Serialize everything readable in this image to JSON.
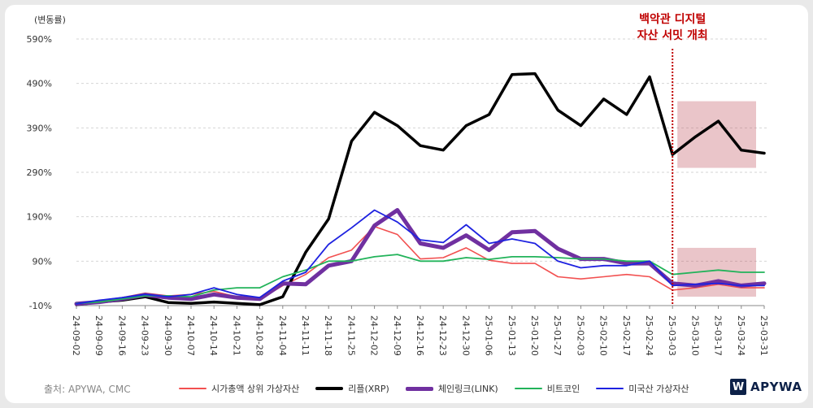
{
  "chart_data": {
    "type": "line",
    "unit_label": "(변동률)",
    "y_ticks": [
      "590%",
      "490%",
      "390%",
      "290%",
      "190%",
      "90%",
      "-10%"
    ],
    "ylim": [
      -10,
      590
    ],
    "categories": [
      "24-09-02",
      "24-09-09",
      "24-09-16",
      "24-09-23",
      "24-09-30",
      "24-10-07",
      "24-10-14",
      "24-10-21",
      "24-10-28",
      "24-11-04",
      "24-11-11",
      "24-11-18",
      "24-11-25",
      "24-12-02",
      "24-12-09",
      "24-12-16",
      "24-12-23",
      "24-12-30",
      "25-01-06",
      "25-01-13",
      "25-01-20",
      "25-01-27",
      "25-02-03",
      "25-02-10",
      "25-02-17",
      "25-02-24",
      "25-03-03",
      "25-03-10",
      "25-03-17",
      "25-03-24",
      "25-03-31"
    ],
    "series": [
      {
        "name": "시가총액 상위 가상자산",
        "color": "#f25050",
        "width": 1.6,
        "values": [
          -5,
          0,
          8,
          18,
          12,
          15,
          22,
          10,
          4,
          35,
          60,
          98,
          115,
          168,
          150,
          95,
          98,
          120,
          92,
          85,
          85,
          55,
          50,
          55,
          60,
          55,
          25,
          30,
          38,
          30,
          30
        ]
      },
      {
        "name": "리플(XRP)",
        "color": "#000000",
        "width": 3.5,
        "values": [
          -8,
          -2,
          2,
          10,
          -3,
          -5,
          -2,
          -5,
          -8,
          10,
          110,
          185,
          360,
          425,
          395,
          350,
          340,
          395,
          420,
          510,
          512,
          430,
          395,
          455,
          420,
          505,
          330,
          370,
          405,
          340,
          333
        ]
      },
      {
        "name": "체인링크(LINK)",
        "color": "#7030a0",
        "width": 5,
        "values": [
          -6,
          -2,
          5,
          14,
          8,
          5,
          15,
          8,
          5,
          40,
          38,
          80,
          90,
          170,
          205,
          130,
          120,
          148,
          115,
          155,
          158,
          118,
          95,
          95,
          85,
          85,
          40,
          35,
          45,
          35,
          40
        ]
      },
      {
        "name": "비트코인",
        "color": "#22b35a",
        "width": 1.8,
        "values": [
          -5,
          -2,
          5,
          12,
          12,
          10,
          25,
          30,
          30,
          55,
          70,
          90,
          90,
          100,
          105,
          90,
          90,
          98,
          94,
          100,
          100,
          98,
          95,
          95,
          90,
          90,
          60,
          65,
          70,
          65,
          65
        ]
      },
      {
        "name": "미국산 가상자산",
        "color": "#1e22e0",
        "width": 1.8,
        "values": [
          -6,
          2,
          8,
          15,
          10,
          15,
          30,
          15,
          8,
          45,
          65,
          128,
          165,
          205,
          178,
          138,
          132,
          172,
          130,
          140,
          130,
          90,
          75,
          80,
          80,
          90,
          35,
          38,
          40,
          35,
          35
        ]
      }
    ],
    "annotation": {
      "line1": "백악관 디지털",
      "line2": "자산 서밋 개최",
      "at_category": "25-03-03"
    },
    "highlight_boxes": [
      {
        "x_from": "25-03-03",
        "x_to": "25-03-31",
        "y_from": 300,
        "y_to": 450
      },
      {
        "x_from": "25-03-03",
        "x_to": "25-03-31",
        "y_from": 10,
        "y_to": 120
      }
    ],
    "source": "출처: APYWA, CMC",
    "legend_placement": "bottom",
    "grid": "horizontal dashed"
  },
  "brand": {
    "logo_mark": "W",
    "logo_text": "APYWA",
    "color": "#0d2148"
  }
}
